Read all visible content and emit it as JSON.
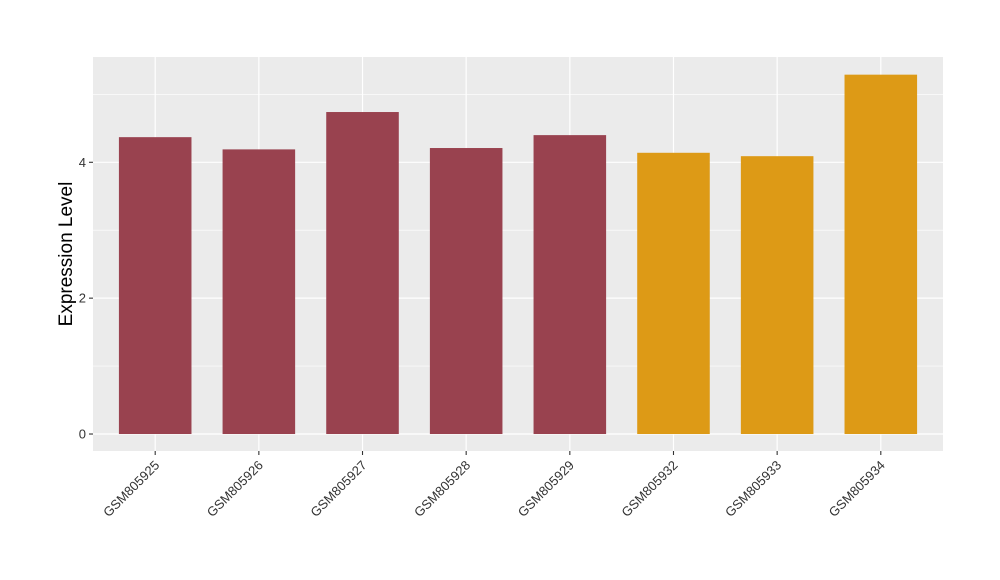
{
  "chart_data": {
    "type": "bar",
    "title": "",
    "xlabel": "",
    "ylabel": "Expression Level",
    "categories": [
      "GSM805925",
      "GSM805926",
      "GSM805927",
      "GSM805928",
      "GSM805929",
      "GSM805932",
      "GSM805933",
      "GSM805934"
    ],
    "values": [
      4.37,
      4.19,
      4.74,
      4.21,
      4.4,
      4.14,
      4.09,
      5.29
    ],
    "bar_colors": [
      "#99424f",
      "#99424f",
      "#99424f",
      "#99424f",
      "#99424f",
      "#dd9a16",
      "#dd9a16",
      "#dd9a16"
    ],
    "ylim": [
      -0.25,
      5.55
    ],
    "yticks": [
      0,
      2,
      4
    ],
    "grid": true,
    "panel_background": "#ebebeb",
    "grid_color": "#ffffff"
  }
}
